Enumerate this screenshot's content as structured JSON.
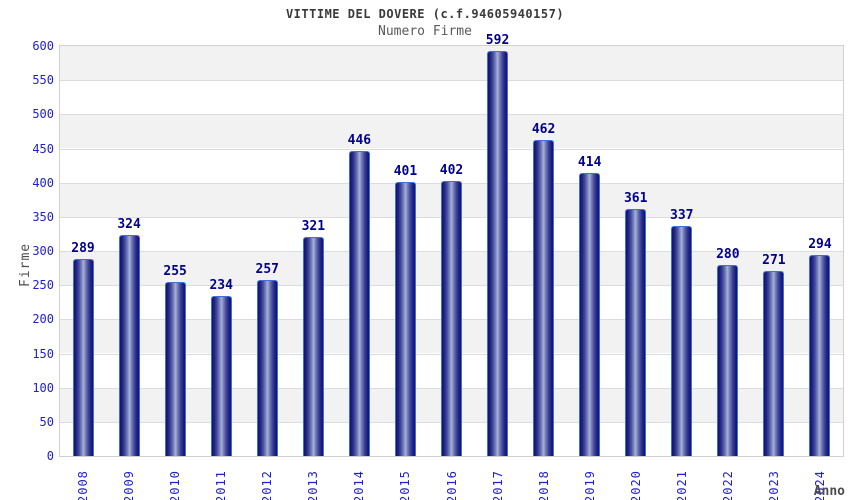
{
  "header": {
    "title": "VITTIME DEL DOVERE (c.f.94605940157)",
    "subtitle": "Numero Firme"
  },
  "chart_data": {
    "type": "bar",
    "title": "VITTIME DEL DOVERE (c.f.94605940157)",
    "subtitle": "Numero Firme",
    "xlabel": "Anno",
    "ylabel": "Firme",
    "categories": [
      "2008",
      "2009",
      "2010",
      "2011",
      "2012",
      "2013",
      "2014",
      "2015",
      "2016",
      "2017",
      "2018",
      "2019",
      "2020",
      "2021",
      "2022",
      "2023",
      "2024"
    ],
    "values": [
      289,
      324,
      255,
      234,
      257,
      321,
      446,
      401,
      402,
      592,
      462,
      414,
      361,
      337,
      280,
      271,
      294
    ],
    "ylim": [
      0,
      600
    ],
    "ytick_step": 50,
    "grid": true,
    "legend": "none",
    "colors": {
      "tick_label": "#2121cc",
      "value_label": "#00008c",
      "bar_edge": "#3c6fe0",
      "bar_dark": "#131368",
      "bar_light": "#a9b2da",
      "band_gray": "#f2f2f2",
      "band_white": "#ffffff",
      "gridline": "#dcdcdc",
      "title": "#3a3a3a",
      "subtitle": "#5a5a5a",
      "axis_title": "#4d4d4d"
    }
  }
}
